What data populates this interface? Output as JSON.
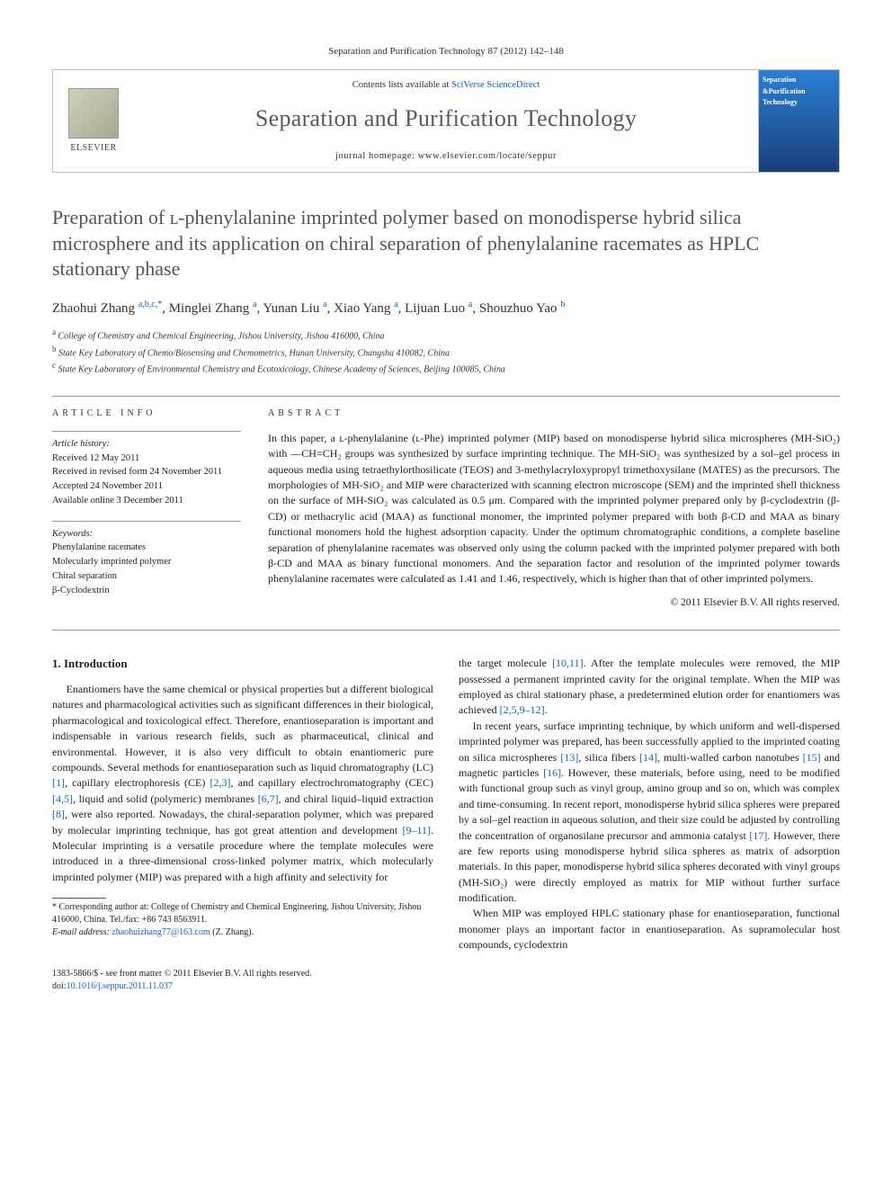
{
  "citation": "Separation and Purification Technology 87 (2012) 142–148",
  "header": {
    "contents_prefix": "Contents lists available at ",
    "contents_link": "SciVerse ScienceDirect",
    "journal_name": "Separation and Purification Technology",
    "homepage_prefix": "journal homepage: ",
    "homepage_url": "www.elsevier.com/locate/seppur",
    "elsevier": "ELSEVIER",
    "cover_line1": "Separation",
    "cover_line2": "&Purification",
    "cover_line3": "Technology"
  },
  "title": "Preparation of ʟ-phenylalanine imprinted polymer based on monodisperse hybrid silica microsphere and its application on chiral separation of phenylalanine racemates as HPLC stationary phase",
  "authors_html": "Zhaohui Zhang <sup>a,b,c,*</sup>, Minglei Zhang <sup>a</sup>, Yunan Liu <sup>a</sup>, Xiao Yang <sup>a</sup>, Lijuan Luo <sup>a</sup>, Shouzhuo Yao <sup>b</sup>",
  "affiliations": [
    {
      "sup": "a",
      "text": "College of Chemistry and Chemical Engineering, Jishou University, Jishou 416000, China"
    },
    {
      "sup": "b",
      "text": "State Key Laboratory of Chemo/Biosensing and Chemometrics, Hunan University, Changsha 410082, China"
    },
    {
      "sup": "c",
      "text": "State Key Laboratory of Environmental Chemistry and Ecotoxicology, Chinese Academy of Sciences, Beijing 100085, China"
    }
  ],
  "article_info": {
    "label": "ARTICLE INFO",
    "history_label": "Article history:",
    "history": [
      "Received 12 May 2011",
      "Received in revised form 24 November 2011",
      "Accepted 24 November 2011",
      "Available online 3 December 2011"
    ],
    "keywords_label": "Keywords:",
    "keywords": [
      "Phenylalanine racemates",
      "Molecularly imprinted polymer",
      "Chiral separation",
      "β-Cyclodextrin"
    ]
  },
  "abstract": {
    "label": "ABSTRACT",
    "text": "In this paper, a ʟ-phenylalanine (ʟ-Phe) imprinted polymer (MIP) based on monodisperse hybrid silica microspheres (MH-SiO₂) with —CH=CH₂ groups was synthesized by surface imprinting technique. The MH-SiO₂ was synthesized by a sol–gel process in aqueous media using tetraethylorthosilicate (TEOS) and 3-methylacryloxypropyl trimethoxysilane (MATES) as the precursors. The morphologies of MH-SiO₂ and MIP were characterized with scanning electron microscope (SEM) and the imprinted shell thickness on the surface of MH-SiO₂ was calculated as 0.5 μm. Compared with the imprinted polymer prepared only by β-cyclodextrin (β-CD) or methacrylic acid (MAA) as functional monomer, the imprinted polymer prepared with both β-CD and MAA as binary functional monomers hold the highest adsorption capacity. Under the optimum chromatographic conditions, a complete baseline separation of phenylalanine racemates was observed only using the column packed with the imprinted polymer prepared with both β-CD and MAA as binary functional monomers. And the separation factor and resolution of the imprinted polymer towards phenylalanine racemates were calculated as 1.41 and 1.46, respectively, which is higher than that of other imprinted polymers.",
    "copyright": "© 2011 Elsevier B.V. All rights reserved."
  },
  "intro": {
    "heading": "1. Introduction",
    "p1": "Enantiomers have the same chemical or physical properties but a different biological natures and pharmacological activities such as significant differences in their biological, pharmacological and toxicological effect. Therefore, enantioseparation is important and indispensable in various research fields, such as pharmaceutical, clinical and environmental. However, it is also very difficult to obtain enantiomeric pure compounds. Several methods for enantioseparation such as liquid chromatography (LC) [1], capillary electrophoresis (CE) [2,3], and capillary electrochromatography (CEC) [4,5], liquid and solid (polymeric) membranes [6,7], and chiral liquid–liquid extraction [8], were also reported. Nowadays, the chiral-separation polymer, which was prepared by molecular imprinting technique, has got great attention and development [9–11]. Molecular imprinting is a versatile procedure where the template molecules were introduced in a three-dimensional cross-linked polymer matrix, which molecularly imprinted polymer (MIP) was prepared with a high affinity and selectivity for",
    "p2": "the target molecule [10,11]. After the template molecules were removed, the MIP possessed a permanent imprinted cavity for the original template. When the MIP was employed as chiral stationary phase, a predetermined elution order for enantiomers was achieved [2,5,9–12].",
    "p3": "In recent years, surface imprinting technique, by which uniform and well-dispersed imprinted polymer was prepared, has been successfully applied to the imprinted coating on silica microspheres [13], silica fibers [14], multi-walled carbon nanotubes [15] and magnetic particles [16]. However, these materials, before using, need to be modified with functional group such as vinyl group, amino group and so on, which was complex and time-consuming. In recent report, monodisperse hybrid silica spheres were prepared by a sol–gel reaction in aqueous solution, and their size could be adjusted by controlling the concentration of organosilane precursor and ammonia catalyst [17]. However, there are few reports using monodisperse hybrid silica spheres as matrix of adsorption materials. In this paper, monodisperse hybrid silica spheres decorated with vinyl groups (MH-SiO₂) were directly employed as matrix for MIP without further surface modification.",
    "p4": "When MIP was employed HPLC stationary phase for enantioseparation, functional monomer plays an important factor in enantioseparation. As supramolecular host compounds, cyclodextrin"
  },
  "footnote": {
    "corr": "* Corresponding author at: College of Chemistry and Chemical Engineering, Jishou University, Jishou 416000, China. Tel./fax: +86 743 8563911.",
    "email_label": "E-mail address:",
    "email": "zhaohuizhang77@163.com",
    "email_suffix": "(Z. Zhang)."
  },
  "footer": {
    "issn": "1383-5866/$ - see front matter © 2011 Elsevier B.V. All rights reserved.",
    "doi_label": "doi:",
    "doi": "10.1016/j.seppur.2011.11.037"
  },
  "refs": {
    "r1": "[1]",
    "r23": "[2,3]",
    "r45": "[4,5]",
    "r67": "[6,7]",
    "r8": "[8]",
    "r911": "[9–11]",
    "r1011": "[10,11]",
    "r25912": "[2,5,9–12]",
    "r13": "[13]",
    "r14": "[14]",
    "r15": "[15]",
    "r16": "[16]",
    "r17": "[17]"
  },
  "colors": {
    "link": "#1560bd",
    "title_gray": "#545454",
    "border": "#bfbfbf",
    "rule": "#999999"
  }
}
